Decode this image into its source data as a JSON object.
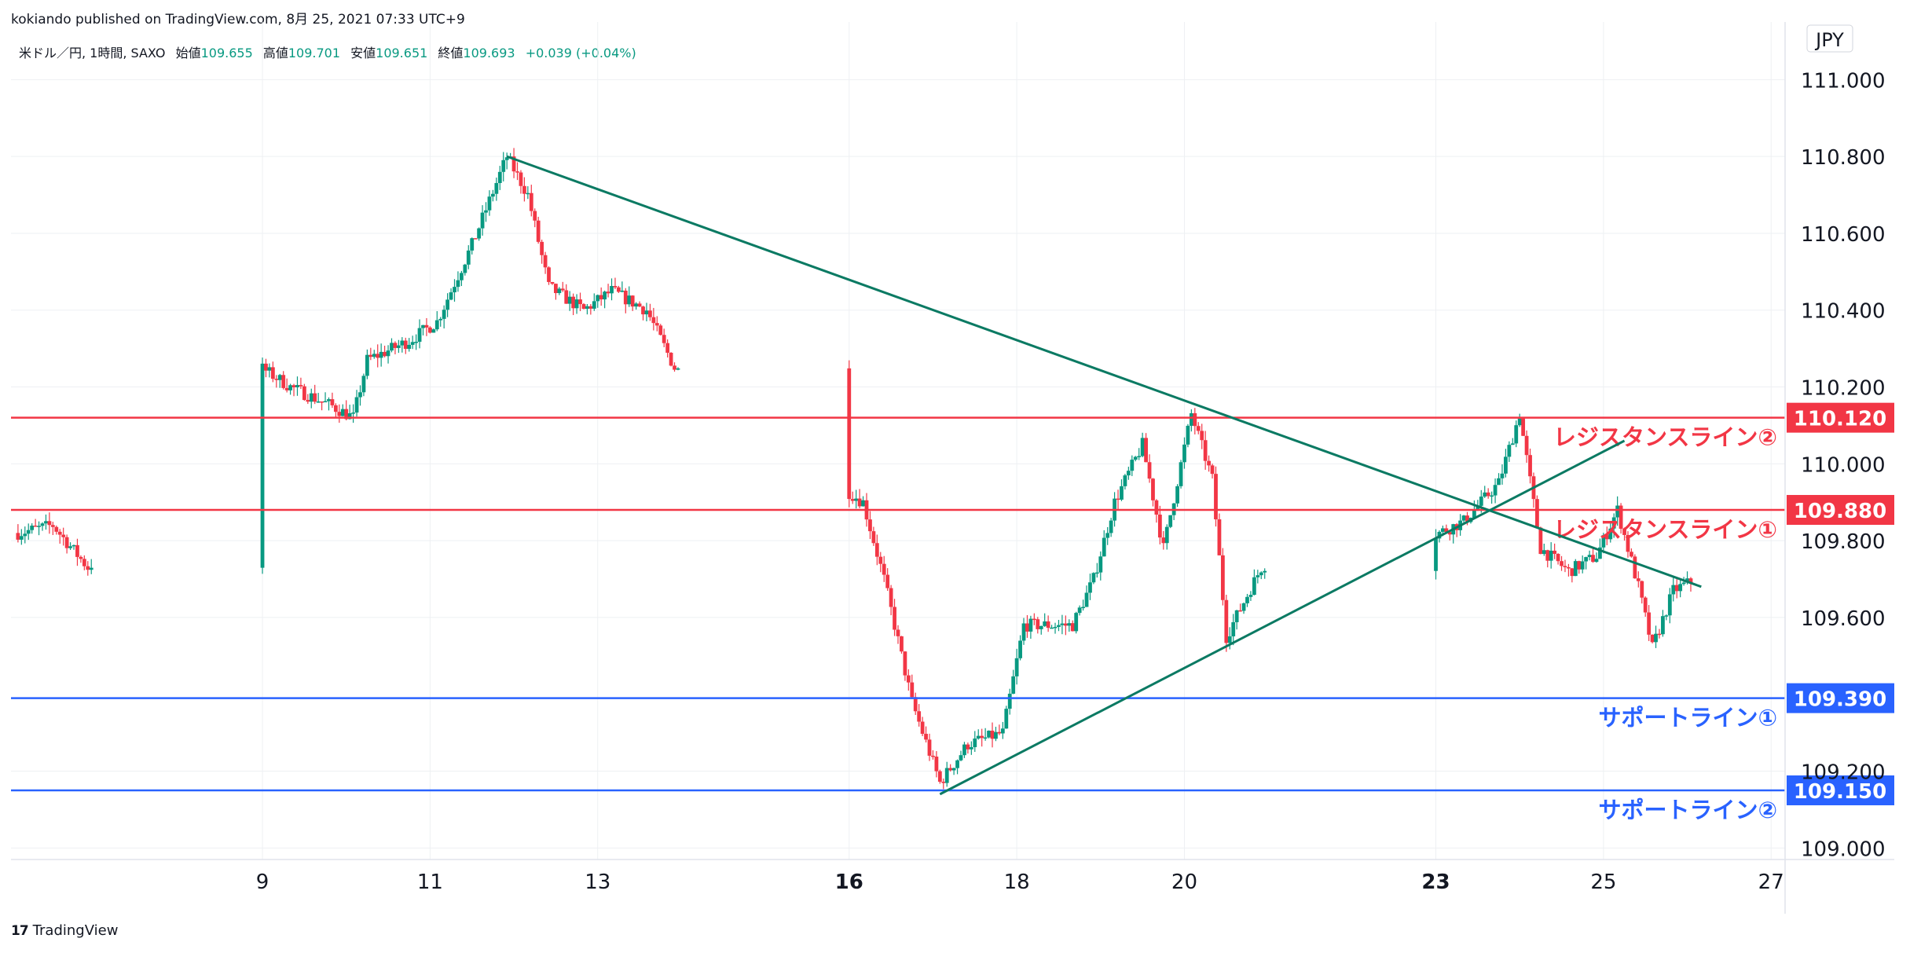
{
  "header": {
    "published_line": "kokiando published on TradingView.com, 8月 25, 2021 07:33 UTC+9"
  },
  "legend": {
    "symbol": "米ドル／円, 1時間, SAXO",
    "open_label": "始値",
    "open": "109.655",
    "high_label": "高値",
    "high": "109.701",
    "low_label": "安値",
    "low": "109.651",
    "close_label": "終値",
    "close": "109.693",
    "change": "+0.039 (+0.04%)"
  },
  "footer": {
    "brand": "TradingView",
    "logo": "17"
  },
  "colors": {
    "up": "#089981",
    "down": "#f23645",
    "resistance": "#f23645",
    "support": "#2962ff",
    "trendline": "#0b7a63",
    "grid": "#eef0f3"
  },
  "chart_data": {
    "type": "candlestick",
    "title": "",
    "currency": "JPY",
    "ylim": [
      108.97,
      111.15
    ],
    "grid": true,
    "y_ticks": [
      "109.000",
      "109.200",
      "109.600",
      "109.800",
      "110.000",
      "110.200",
      "110.400",
      "110.600",
      "110.800",
      "111.000"
    ],
    "x_ticks": [
      {
        "x": "2021-08-09",
        "label": "9",
        "bold": false
      },
      {
        "x": "2021-08-11",
        "label": "11",
        "bold": false
      },
      {
        "x": "2021-08-13",
        "label": "13",
        "bold": false
      },
      {
        "x": "2021-08-16",
        "label": "16",
        "bold": true
      },
      {
        "x": "2021-08-18",
        "label": "18",
        "bold": false
      },
      {
        "x": "2021-08-20",
        "label": "20",
        "bold": false
      },
      {
        "x": "2021-08-23",
        "label": "23",
        "bold": true
      },
      {
        "x": "2021-08-25",
        "label": "25",
        "bold": false
      },
      {
        "x": "2021-08-27",
        "label": "27",
        "bold": false
      }
    ],
    "horizontal_lines": [
      {
        "name": "レジスタンスライン②",
        "value": 110.12,
        "label": "110.120",
        "kind": "resistance"
      },
      {
        "name": "レジスタンスライン①",
        "value": 109.88,
        "label": "109.880",
        "kind": "resistance"
      },
      {
        "name": "サポートライン①",
        "value": 109.39,
        "label": "109.390",
        "kind": "support"
      },
      {
        "name": "サポートライン②",
        "value": 109.15,
        "label": "109.150",
        "kind": "support"
      }
    ],
    "trendlines": [
      {
        "from": [
          "2021-08-11 22:00",
          110.8
        ],
        "to": [
          "2021-08-26 04:00",
          109.68
        ]
      },
      {
        "from": [
          "2021-08-17 02:00",
          109.14
        ],
        "to": [
          "2021-08-25 06:00",
          110.06
        ]
      }
    ],
    "close_path": [
      [
        "2021-08-06 02:00",
        109.82
      ],
      [
        "2021-08-06 12:00",
        109.84
      ],
      [
        "2021-08-06 22:00",
        109.73
      ],
      [
        "2021-08-07 06:00",
        109.8
      ],
      [
        "2021-08-07 10:00",
        110.1
      ],
      [
        "2021-08-07 16:00",
        110.27
      ],
      [
        "2021-08-08 08:00",
        110.23
      ],
      [
        "2021-08-08 22:00",
        110.26
      ],
      [
        "2021-08-09 08:00",
        110.2
      ],
      [
        "2021-08-09 20:00",
        110.15
      ],
      [
        "2021-08-10 02:00",
        110.12
      ],
      [
        "2021-08-10 06:00",
        110.27
      ],
      [
        "2021-08-10 18:00",
        110.32
      ],
      [
        "2021-08-11 02:00",
        110.37
      ],
      [
        "2021-08-11 12:00",
        110.57
      ],
      [
        "2021-08-11 22:00",
        110.8
      ],
      [
        "2021-08-12 04:00",
        110.7
      ],
      [
        "2021-08-12 10:00",
        110.46
      ],
      [
        "2021-08-12 20:00",
        110.4
      ],
      [
        "2021-08-13 04:00",
        110.45
      ],
      [
        "2021-08-13 14:00",
        110.4
      ],
      [
        "2021-08-13 22:00",
        110.25
      ],
      [
        "2021-08-16 04:00",
        109.9
      ],
      [
        "2021-08-16 10:00",
        109.7
      ],
      [
        "2021-08-16 18:00",
        109.38
      ],
      [
        "2021-08-17 02:00",
        109.17
      ],
      [
        "2021-08-17 10:00",
        109.27
      ],
      [
        "2021-08-17 20:00",
        109.3
      ],
      [
        "2021-08-18 02:00",
        109.58
      ],
      [
        "2021-08-18 16:00",
        109.58
      ],
      [
        "2021-08-18 22:00",
        109.7
      ],
      [
        "2021-08-19 04:00",
        109.9
      ],
      [
        "2021-08-19 12:00",
        110.05
      ],
      [
        "2021-08-19 18:00",
        109.78
      ],
      [
        "2021-08-20 02:00",
        110.13
      ],
      [
        "2021-08-20 08:00",
        109.96
      ],
      [
        "2021-08-20 12:00",
        109.55
      ],
      [
        "2021-08-20 22:00",
        109.73
      ],
      [
        "2021-08-21 08:00",
        109.8
      ],
      [
        "2021-08-21 20:00",
        109.68
      ],
      [
        "2021-08-22 08:00",
        109.67
      ],
      [
        "2021-08-22 20:00",
        109.8
      ],
      [
        "2021-08-23 08:00",
        109.85
      ],
      [
        "2021-08-23 18:00",
        109.95
      ],
      [
        "2021-08-24 00:00",
        110.13
      ],
      [
        "2021-08-24 06:00",
        109.78
      ],
      [
        "2021-08-24 14:00",
        109.72
      ],
      [
        "2021-08-24 22:00",
        109.76
      ],
      [
        "2021-08-25 04:00",
        109.88
      ],
      [
        "2021-08-25 10:00",
        109.68
      ],
      [
        "2021-08-25 14:00",
        109.52
      ],
      [
        "2021-08-25 20:00",
        109.67
      ],
      [
        "2021-08-26 01:00",
        109.693
      ]
    ]
  }
}
